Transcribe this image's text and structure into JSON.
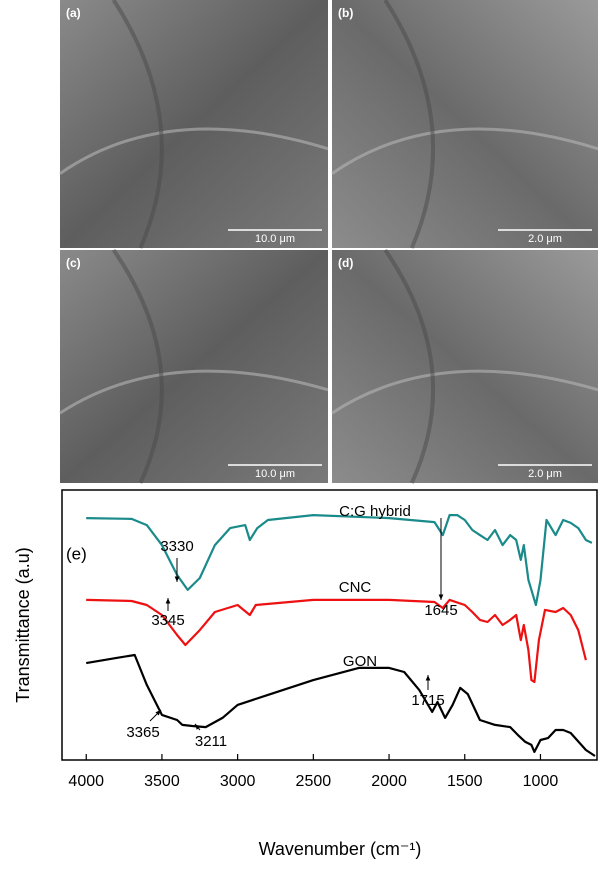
{
  "panels": [
    {
      "label": "(a)",
      "scale": "10.0 μm"
    },
    {
      "label": "(b)",
      "scale": "2.0 μm"
    },
    {
      "label": "(c)",
      "scale": "10.0 μm"
    },
    {
      "label": "(d)",
      "scale": "2.0 μm"
    }
  ],
  "chart_data": {
    "type": "line",
    "panel_label": "(e)",
    "x_label": "Wavenumber (cm⁻¹)",
    "y_label": "Transmittance (a.u)",
    "xlim": [
      4160,
      620
    ],
    "xticks": [
      4000,
      3500,
      3000,
      2500,
      2000,
      1500,
      1000
    ],
    "ylim": [
      0,
      100
    ],
    "series": [
      {
        "name": "C:G hybrid",
        "color": "#1a8a8a",
        "x": [
          4000,
          3700,
          3600,
          3500,
          3400,
          3330,
          3250,
          3150,
          3050,
          2950,
          2920,
          2870,
          2800,
          2500,
          2000,
          1700,
          1645,
          1600,
          1550,
          1500,
          1450,
          1400,
          1350,
          1300,
          1250,
          1200,
          1160,
          1130,
          1110,
          1080,
          1060,
          1030,
          1000,
          960,
          900,
          850,
          800,
          750,
          700,
          660
        ],
        "values": [
          89.6,
          89.3,
          87.0,
          79.6,
          68.5,
          63.0,
          67.4,
          79.6,
          85.9,
          87.0,
          81.5,
          85.9,
          88.9,
          90.7,
          89.6,
          88.1,
          83.3,
          90.7,
          90.7,
          88.9,
          85.2,
          83.3,
          81.5,
          85.2,
          79.6,
          83.3,
          81.5,
          74.1,
          79.6,
          66.7,
          63.0,
          57.4,
          66.7,
          88.9,
          83.3,
          88.9,
          87.8,
          85.9,
          81.5,
          80.4
        ]
      },
      {
        "name": "CNC",
        "color": "#ee1111",
        "x": [
          4000,
          3700,
          3600,
          3500,
          3400,
          3345,
          3250,
          3150,
          3000,
          2920,
          2880,
          2500,
          2000,
          1700,
          1645,
          1600,
          1500,
          1450,
          1400,
          1350,
          1300,
          1250,
          1200,
          1160,
          1130,
          1110,
          1080,
          1060,
          1040,
          1010,
          970,
          900,
          850,
          800,
          750,
          700
        ],
        "values": [
          59.3,
          58.9,
          57.4,
          53.7,
          46.3,
          42.6,
          48.1,
          54.8,
          57.4,
          53.7,
          57.4,
          59.3,
          59.3,
          58.5,
          56.3,
          59.3,
          57.4,
          54.8,
          51.9,
          51.1,
          53.7,
          50.0,
          51.9,
          53.7,
          44.4,
          50.0,
          40.7,
          29.6,
          28.9,
          44.4,
          55.6,
          54.8,
          56.3,
          53.7,
          48.1,
          37.0
        ]
      },
      {
        "name": "GON",
        "color": "#000000",
        "x": [
          4000,
          3800,
          3680,
          3600,
          3500,
          3400,
          3365,
          3300,
          3211,
          3100,
          3000,
          2800,
          2500,
          2200,
          2000,
          1900,
          1800,
          1715,
          1680,
          1630,
          1580,
          1530,
          1480,
          1400,
          1300,
          1200,
          1150,
          1100,
          1060,
          1040,
          1000,
          950,
          900,
          850,
          800,
          700,
          640
        ],
        "values": [
          35.9,
          37.8,
          38.9,
          27.8,
          16.7,
          14.8,
          13.0,
          12.6,
          12.2,
          15.6,
          20.4,
          24.1,
          29.6,
          34.1,
          34.1,
          32.6,
          25.9,
          17.8,
          21.5,
          15.6,
          20.4,
          26.7,
          24.4,
          14.8,
          13.0,
          12.2,
          9.3,
          6.7,
          5.6,
          3.0,
          7.4,
          8.1,
          11.1,
          11.1,
          10.0,
          3.7,
          1.5
        ]
      }
    ],
    "annotations": [
      "3330",
      "3345",
      "3365",
      "3211",
      "1715",
      "1645"
    ]
  }
}
